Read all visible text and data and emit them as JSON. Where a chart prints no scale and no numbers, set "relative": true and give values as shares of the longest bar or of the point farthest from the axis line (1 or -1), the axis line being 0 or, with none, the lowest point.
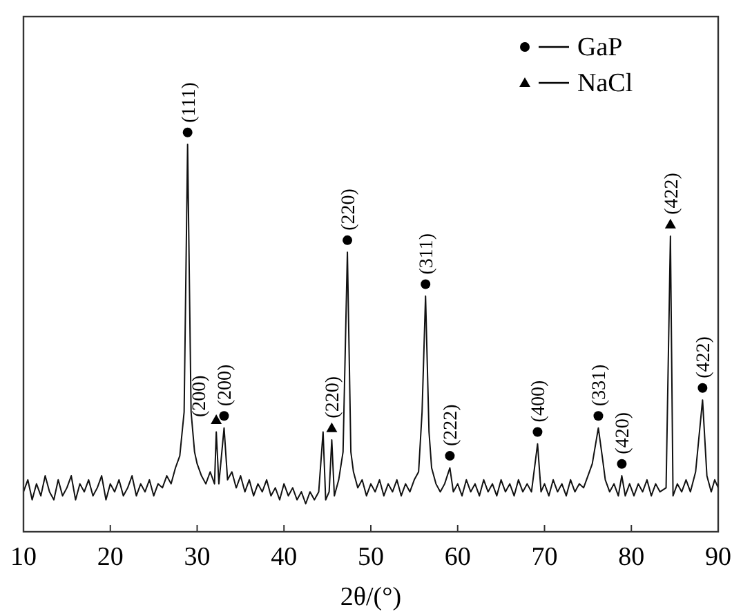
{
  "chart_data": {
    "type": "line",
    "relative": true,
    "xlabel": "2θ/(°)",
    "xlim": [
      10,
      90
    ],
    "xticks": [
      10,
      20,
      30,
      40,
      50,
      60,
      70,
      80,
      90
    ],
    "tick_labels": "x",
    "legend": "top right",
    "grid": false,
    "series": [
      {
        "type": "line",
        "color": "#111111",
        "marker": "none",
        "x": [
          10,
          10.5,
          11,
          11.5,
          12,
          12.5,
          13,
          13.5,
          14,
          14.5,
          15,
          15.5,
          16,
          16.5,
          17,
          17.5,
          18,
          18.5,
          19,
          19.5,
          20,
          20.5,
          21,
          21.5,
          22,
          22.5,
          23,
          23.5,
          24,
          24.5,
          25,
          25.5,
          26,
          26.5,
          27,
          27.5,
          28,
          28.5,
          28.9,
          29.3,
          29.7,
          30,
          30.5,
          31,
          31.5,
          32,
          32.2,
          32.5,
          33.1,
          33.5,
          34,
          34.5,
          35,
          35.5,
          36,
          36.5,
          37,
          37.5,
          38,
          38.5,
          39,
          39.5,
          40,
          40.5,
          41,
          41.5,
          42,
          42.5,
          43,
          43.5,
          44,
          44.5,
          44.8,
          45.2,
          45.5,
          45.8,
          46.3,
          46.8,
          47.3,
          47.7,
          48,
          48.5,
          49,
          49.5,
          50,
          50.5,
          51,
          51.5,
          52,
          52.5,
          53,
          53.5,
          54,
          54.5,
          55,
          55.5,
          55.9,
          56.3,
          56.7,
          57,
          57.5,
          58,
          58.5,
          59.1,
          59.5,
          60,
          60.5,
          61,
          61.5,
          62,
          62.5,
          63,
          63.5,
          64,
          64.5,
          65,
          65.5,
          66,
          66.5,
          67,
          67.5,
          68,
          68.5,
          69.2,
          69.6,
          70,
          70.5,
          71,
          71.5,
          72,
          72.5,
          73,
          73.5,
          74,
          74.5,
          75,
          75.5,
          76.2,
          76.7,
          77,
          77.5,
          78,
          78.5,
          78.9,
          79.3,
          79.8,
          80.3,
          80.8,
          81.3,
          81.8,
          82.3,
          82.8,
          83.3,
          84,
          84.5,
          84.8,
          85.3,
          85.8,
          86.3,
          86.8,
          87.4,
          88.2,
          88.7,
          89.2,
          89.6,
          90
        ],
        "values": [
          0.1,
          0.13,
          0.08,
          0.12,
          0.09,
          0.14,
          0.1,
          0.08,
          0.13,
          0.09,
          0.11,
          0.14,
          0.08,
          0.12,
          0.1,
          0.13,
          0.09,
          0.11,
          0.14,
          0.08,
          0.12,
          0.1,
          0.13,
          0.09,
          0.11,
          0.14,
          0.09,
          0.12,
          0.1,
          0.13,
          0.09,
          0.12,
          0.11,
          0.14,
          0.12,
          0.16,
          0.19,
          0.3,
          0.97,
          0.3,
          0.2,
          0.17,
          0.14,
          0.12,
          0.15,
          0.12,
          0.25,
          0.12,
          0.26,
          0.13,
          0.15,
          0.11,
          0.14,
          0.1,
          0.13,
          0.09,
          0.12,
          0.1,
          0.13,
          0.09,
          0.11,
          0.08,
          0.12,
          0.09,
          0.11,
          0.08,
          0.1,
          0.07,
          0.1,
          0.08,
          0.1,
          0.25,
          0.08,
          0.1,
          0.23,
          0.09,
          0.13,
          0.2,
          0.7,
          0.2,
          0.15,
          0.11,
          0.13,
          0.09,
          0.12,
          0.1,
          0.13,
          0.09,
          0.12,
          0.1,
          0.13,
          0.09,
          0.12,
          0.1,
          0.13,
          0.15,
          0.3,
          0.59,
          0.25,
          0.16,
          0.12,
          0.1,
          0.12,
          0.16,
          0.1,
          0.12,
          0.09,
          0.13,
          0.1,
          0.12,
          0.09,
          0.13,
          0.1,
          0.12,
          0.09,
          0.13,
          0.1,
          0.12,
          0.09,
          0.13,
          0.1,
          0.12,
          0.1,
          0.22,
          0.1,
          0.12,
          0.09,
          0.13,
          0.1,
          0.12,
          0.09,
          0.13,
          0.1,
          0.12,
          0.11,
          0.14,
          0.17,
          0.26,
          0.18,
          0.13,
          0.1,
          0.12,
          0.09,
          0.14,
          0.09,
          0.12,
          0.09,
          0.12,
          0.1,
          0.13,
          0.09,
          0.12,
          0.1,
          0.11,
          0.74,
          0.09,
          0.12,
          0.1,
          0.13,
          0.1,
          0.15,
          0.33,
          0.14,
          0.1,
          0.13,
          0.11
        ]
      },
      {
        "type": "scatter",
        "name": "GaP",
        "color": "#000000",
        "marker": "circle",
        "x": [
          28.9,
          33.1,
          47.3,
          56.3,
          59.1,
          69.2,
          76.2,
          78.9,
          88.2
        ],
        "values": [
          1.0,
          0.29,
          0.73,
          0.62,
          0.19,
          0.25,
          0.29,
          0.17,
          0.36
        ]
      },
      {
        "type": "scatter",
        "name": "NaCl",
        "color": "#000000",
        "marker": "triangle",
        "x": [
          32.2,
          45.5,
          84.5
        ],
        "values": [
          0.28,
          0.26,
          0.77
        ]
      }
    ],
    "annotations": [
      {
        "text": "(111)",
        "x": 28.9,
        "y": 1.0
      },
      {
        "text": "(200)",
        "x": 32.2,
        "y": 0.28
      },
      {
        "text": "(200)",
        "x": 33.1,
        "y": 0.29
      },
      {
        "text": "(220)",
        "x": 45.5,
        "y": 0.26
      },
      {
        "text": "(220)",
        "x": 47.3,
        "y": 0.73
      },
      {
        "text": "(311)",
        "x": 56.3,
        "y": 0.62
      },
      {
        "text": "(222)",
        "x": 59.1,
        "y": 0.19
      },
      {
        "text": "(400)",
        "x": 69.2,
        "y": 0.25
      },
      {
        "text": "(331)",
        "x": 76.2,
        "y": 0.29
      },
      {
        "text": "(420)",
        "x": 78.9,
        "y": 0.17
      },
      {
        "text": "(422)",
        "x": 84.5,
        "y": 0.77
      },
      {
        "text": "(422)",
        "x": 88.2,
        "y": 0.36
      }
    ]
  }
}
